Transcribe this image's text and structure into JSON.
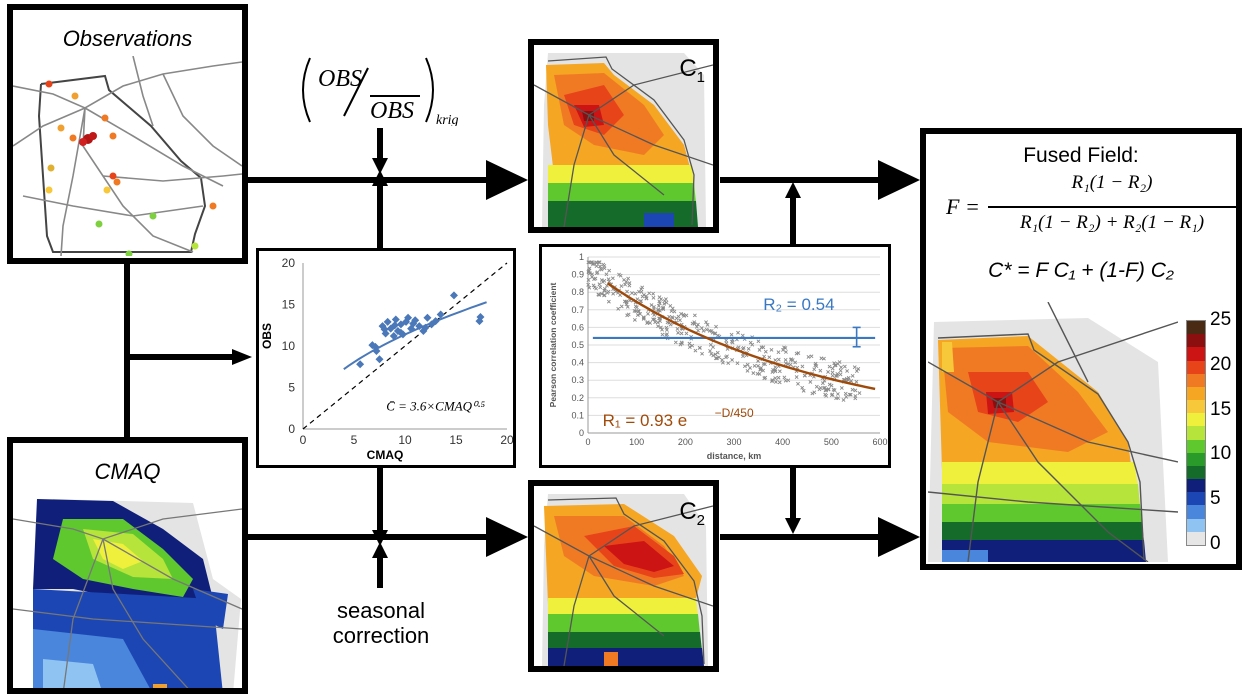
{
  "observations_label": "Observations",
  "cmaq_label": "CMAQ",
  "obs_ratio": {
    "num": "OBS",
    "den": "OBS",
    "sub": "krig"
  },
  "seasonal": [
    "seasonal",
    "correction"
  ],
  "c1": {
    "base": "C",
    "sub": "1"
  },
  "c2": {
    "base": "C",
    "sub": "2"
  },
  "fused": {
    "title": "Fused Field:",
    "f_lhs": "F =",
    "f_num": "R₁(1 − R₂)",
    "f_den": "R₁(1 − R₂) + R₂(1 − R₁)",
    "cstar": "C* = F C₁ + (1-F) C₂"
  },
  "colorbar": {
    "ticks": [
      "25",
      "20",
      "15",
      "10",
      "5",
      "0"
    ],
    "colors": [
      "#4a2a12",
      "#8b0f0f",
      "#cc1414",
      "#e8441a",
      "#f07a24",
      "#f5a623",
      "#f6c83a",
      "#eef03c",
      "#b6e43a",
      "#5fc82e",
      "#2a9a2a",
      "#156b2a",
      "#10207a",
      "#1c46b4",
      "#4a86dc",
      "#8fc4f2",
      "#e6e6e6"
    ]
  },
  "scatter_chart": {
    "type": "scatter",
    "xlabel": "CMAQ",
    "ylabel": "OBS",
    "xlim": [
      0,
      20
    ],
    "ylim": [
      0,
      20
    ],
    "xticks": [
      "0",
      "5",
      "10",
      "15",
      "20"
    ],
    "yticks": [
      "0",
      "5",
      "10",
      "15",
      "20"
    ],
    "formula": "C̄ = 3.6×CMAQ⁰·⁵",
    "points": [
      [
        5.6,
        7.8
      ],
      [
        6.8,
        10.1
      ],
      [
        7.2,
        9.4
      ],
      [
        7.5,
        8.4
      ],
      [
        7.8,
        12.4
      ],
      [
        8.1,
        11.5
      ],
      [
        8.3,
        12.9
      ],
      [
        8.6,
        12.1
      ],
      [
        8.9,
        11.2
      ],
      [
        9.1,
        13.2
      ],
      [
        9.3,
        11.8
      ],
      [
        9.6,
        12.6
      ],
      [
        9.8,
        11.4
      ],
      [
        10.1,
        12.9
      ],
      [
        10.3,
        13.4
      ],
      [
        10.6,
        12.1
      ],
      [
        11.0,
        13.1
      ],
      [
        11.4,
        12.4
      ],
      [
        11.8,
        11.8
      ],
      [
        12.2,
        13.4
      ],
      [
        12.6,
        12.6
      ],
      [
        13.0,
        13.0
      ],
      [
        13.5,
        13.8
      ],
      [
        14.8,
        16.1
      ],
      [
        17.3,
        13.0
      ],
      [
        17.4,
        13.5
      ],
      [
        8.0,
        12.0
      ],
      [
        9.0,
        12.5
      ],
      [
        9.6,
        11.6
      ],
      [
        10.8,
        12.7
      ],
      [
        12.0,
        12.2
      ],
      [
        7.1,
        9.9
      ]
    ],
    "fit_line": {
      "a": 3.6,
      "exp": 0.5
    }
  },
  "correlation_chart": {
    "type": "scatter",
    "xlabel": "distance, km",
    "ylabel": "Pearson correlation coefficient",
    "xlim": [
      0,
      600
    ],
    "ylim": [
      0,
      1
    ],
    "xticks": [
      "0",
      "100",
      "200",
      "300",
      "400",
      "500",
      "600"
    ],
    "yticks": [
      "0",
      "0.1",
      "0.2",
      "0.3",
      "0.4",
      "0.5",
      "0.6",
      "0.7",
      "0.8",
      "0.9",
      "1"
    ],
    "r2_label": "R₂ = 0.54",
    "r2_value": 0.54,
    "r1_label_base": "R₁ = 0.93 e",
    "r1_label_exp": "−D/450",
    "r1_curve": {
      "a": 0.93,
      "scale": 450
    },
    "line_color_r1": "#a04a0a",
    "line_color_r2": "#3a78c2"
  }
}
